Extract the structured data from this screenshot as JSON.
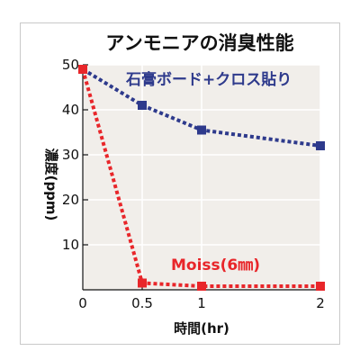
{
  "colors": {
    "plot_bg": "#f1eeea",
    "frame_border": "#c9c9c9",
    "series_blue": "#2e3a8c",
    "series_red": "#e8262a"
  },
  "chart_data": {
    "type": "line",
    "title": "アンモニアの消臭性能",
    "xlabel": "時間(hr)",
    "ylabel": "濃度(ppm)",
    "xlim": [
      0,
      2
    ],
    "ylim": [
      0,
      50
    ],
    "x_ticks": [
      0,
      0.5,
      1,
      2
    ],
    "x_tick_labels": [
      "0",
      "0.5",
      "1",
      "2"
    ],
    "y_ticks": [
      10,
      20,
      30,
      40,
      50
    ],
    "y_tick_labels": [
      "10",
      "20",
      "30",
      "40",
      "50"
    ],
    "grid": true,
    "series": [
      {
        "name": "石膏ボード+クロス貼り",
        "color": "#2e3a8c",
        "x": [
          0,
          0.5,
          1,
          2
        ],
        "y": [
          49,
          41,
          35.5,
          32
        ]
      },
      {
        "name": "Moiss(6㎜)",
        "color": "#e8262a",
        "x": [
          0,
          0.5,
          1,
          2
        ],
        "y": [
          49,
          1.5,
          0.8,
          0.8
        ]
      }
    ]
  }
}
